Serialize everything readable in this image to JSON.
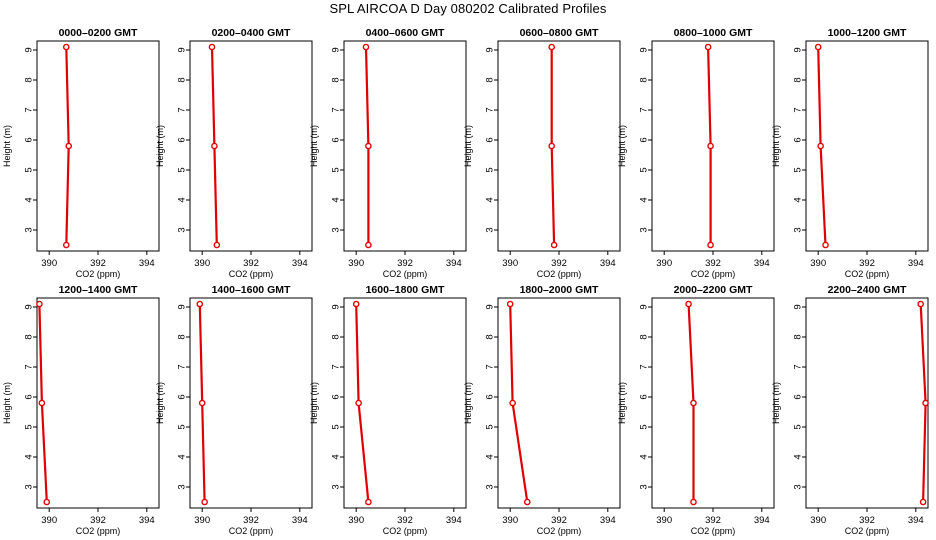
{
  "figure": {
    "title": "SPL AIRCOA D  Day 080202  Calibrated Profiles"
  },
  "colors": {
    "line": "#e00000",
    "point": "#e00000",
    "axis": "#000000"
  },
  "chart_data": [
    {
      "type": "line",
      "title": "0000–0200 GMT",
      "xlabel": "CO2 (ppm)",
      "ylabel": "Height (m)",
      "xlim": [
        389.5,
        394.5
      ],
      "ylim": [
        2.3,
        9.3
      ],
      "xticks": [
        390,
        392,
        394
      ],
      "yticks": [
        3,
        4,
        5,
        6,
        7,
        8,
        9
      ],
      "grid": false,
      "series": [
        {
          "x": [
            390.7,
            390.8,
            390.7
          ],
          "y": [
            2.5,
            5.8,
            9.1
          ]
        }
      ]
    },
    {
      "type": "line",
      "title": "0200–0400 GMT",
      "xlabel": "CO2 (ppm)",
      "ylabel": "Height (m)",
      "xlim": [
        389.5,
        394.5
      ],
      "ylim": [
        2.3,
        9.3
      ],
      "xticks": [
        390,
        392,
        394
      ],
      "yticks": [
        3,
        4,
        5,
        6,
        7,
        8,
        9
      ],
      "grid": false,
      "series": [
        {
          "x": [
            390.6,
            390.5,
            390.4
          ],
          "y": [
            2.5,
            5.8,
            9.1
          ]
        }
      ]
    },
    {
      "type": "line",
      "title": "0400–0600 GMT",
      "xlabel": "CO2 (ppm)",
      "ylabel": "Height (m)",
      "xlim": [
        389.5,
        394.5
      ],
      "ylim": [
        2.3,
        9.3
      ],
      "xticks": [
        390,
        392,
        394
      ],
      "yticks": [
        3,
        4,
        5,
        6,
        7,
        8,
        9
      ],
      "grid": false,
      "series": [
        {
          "x": [
            390.5,
            390.5,
            390.4
          ],
          "y": [
            2.5,
            5.8,
            9.1
          ]
        }
      ]
    },
    {
      "type": "line",
      "title": "0600–0800 GMT",
      "xlabel": "CO2 (ppm)",
      "ylabel": "Height (m)",
      "xlim": [
        389.5,
        394.5
      ],
      "ylim": [
        2.3,
        9.3
      ],
      "xticks": [
        390,
        392,
        394
      ],
      "yticks": [
        3,
        4,
        5,
        6,
        7,
        8,
        9
      ],
      "grid": false,
      "series": [
        {
          "x": [
            391.8,
            391.7,
            391.7
          ],
          "y": [
            2.5,
            5.8,
            9.1
          ]
        }
      ]
    },
    {
      "type": "line",
      "title": "0800–1000 GMT",
      "xlabel": "CO2 (ppm)",
      "ylabel": "Height (m)",
      "xlim": [
        389.5,
        394.5
      ],
      "ylim": [
        2.3,
        9.3
      ],
      "xticks": [
        390,
        392,
        394
      ],
      "yticks": [
        3,
        4,
        5,
        6,
        7,
        8,
        9
      ],
      "grid": false,
      "series": [
        {
          "x": [
            391.9,
            391.9,
            391.8
          ],
          "y": [
            2.5,
            5.8,
            9.1
          ]
        }
      ]
    },
    {
      "type": "line",
      "title": "1000–1200 GMT",
      "xlabel": "CO2 (ppm)",
      "ylabel": "Height (m)",
      "xlim": [
        389.5,
        394.5
      ],
      "ylim": [
        2.3,
        9.3
      ],
      "xticks": [
        390,
        392,
        394
      ],
      "yticks": [
        3,
        4,
        5,
        6,
        7,
        8,
        9
      ],
      "grid": false,
      "series": [
        {
          "x": [
            390.3,
            390.1,
            390.0
          ],
          "y": [
            2.5,
            5.8,
            9.1
          ]
        }
      ]
    },
    {
      "type": "line",
      "title": "1200–1400 GMT",
      "xlabel": "CO2 (ppm)",
      "ylabel": "Height (m)",
      "xlim": [
        389.5,
        394.5
      ],
      "ylim": [
        2.3,
        9.3
      ],
      "xticks": [
        390,
        392,
        394
      ],
      "yticks": [
        3,
        4,
        5,
        6,
        7,
        8,
        9
      ],
      "grid": false,
      "series": [
        {
          "x": [
            389.9,
            389.7,
            389.6
          ],
          "y": [
            2.5,
            5.8,
            9.1
          ]
        }
      ]
    },
    {
      "type": "line",
      "title": "1400–1600 GMT",
      "xlabel": "CO2 (ppm)",
      "ylabel": "Height (m)",
      "xlim": [
        389.5,
        394.5
      ],
      "ylim": [
        2.3,
        9.3
      ],
      "xticks": [
        390,
        392,
        394
      ],
      "yticks": [
        3,
        4,
        5,
        6,
        7,
        8,
        9
      ],
      "grid": false,
      "series": [
        {
          "x": [
            390.1,
            390.0,
            389.9
          ],
          "y": [
            2.5,
            5.8,
            9.1
          ]
        }
      ]
    },
    {
      "type": "line",
      "title": "1600–1800 GMT",
      "xlabel": "CO2 (ppm)",
      "ylabel": "Height (m)",
      "xlim": [
        389.5,
        394.5
      ],
      "ylim": [
        2.3,
        9.3
      ],
      "xticks": [
        390,
        392,
        394
      ],
      "yticks": [
        3,
        4,
        5,
        6,
        7,
        8,
        9
      ],
      "grid": false,
      "series": [
        {
          "x": [
            390.5,
            390.1,
            390.0
          ],
          "y": [
            2.5,
            5.8,
            9.1
          ]
        }
      ]
    },
    {
      "type": "line",
      "title": "1800–2000 GMT",
      "xlabel": "CO2 (ppm)",
      "ylabel": "Height (m)",
      "xlim": [
        389.5,
        394.5
      ],
      "ylim": [
        2.3,
        9.3
      ],
      "xticks": [
        390,
        392,
        394
      ],
      "yticks": [
        3,
        4,
        5,
        6,
        7,
        8,
        9
      ],
      "grid": false,
      "series": [
        {
          "x": [
            390.7,
            390.1,
            390.0
          ],
          "y": [
            2.5,
            5.8,
            9.1
          ]
        }
      ]
    },
    {
      "type": "line",
      "title": "2000–2200 GMT",
      "xlabel": "CO2 (ppm)",
      "ylabel": "Height (m)",
      "xlim": [
        389.5,
        394.5
      ],
      "ylim": [
        2.3,
        9.3
      ],
      "xticks": [
        390,
        392,
        394
      ],
      "yticks": [
        3,
        4,
        5,
        6,
        7,
        8,
        9
      ],
      "grid": false,
      "series": [
        {
          "x": [
            391.2,
            391.2,
            391.0
          ],
          "y": [
            2.5,
            5.8,
            9.1
          ]
        }
      ]
    },
    {
      "type": "line",
      "title": "2200–2400 GMT",
      "xlabel": "CO2 (ppm)",
      "ylabel": "Height (m)",
      "xlim": [
        389.5,
        394.5
      ],
      "ylim": [
        2.3,
        9.3
      ],
      "xticks": [
        390,
        392,
        394
      ],
      "yticks": [
        3,
        4,
        5,
        6,
        7,
        8,
        9
      ],
      "grid": false,
      "series": [
        {
          "x": [
            394.3,
            394.4,
            394.2
          ],
          "y": [
            2.5,
            5.8,
            9.1
          ]
        }
      ]
    }
  ]
}
